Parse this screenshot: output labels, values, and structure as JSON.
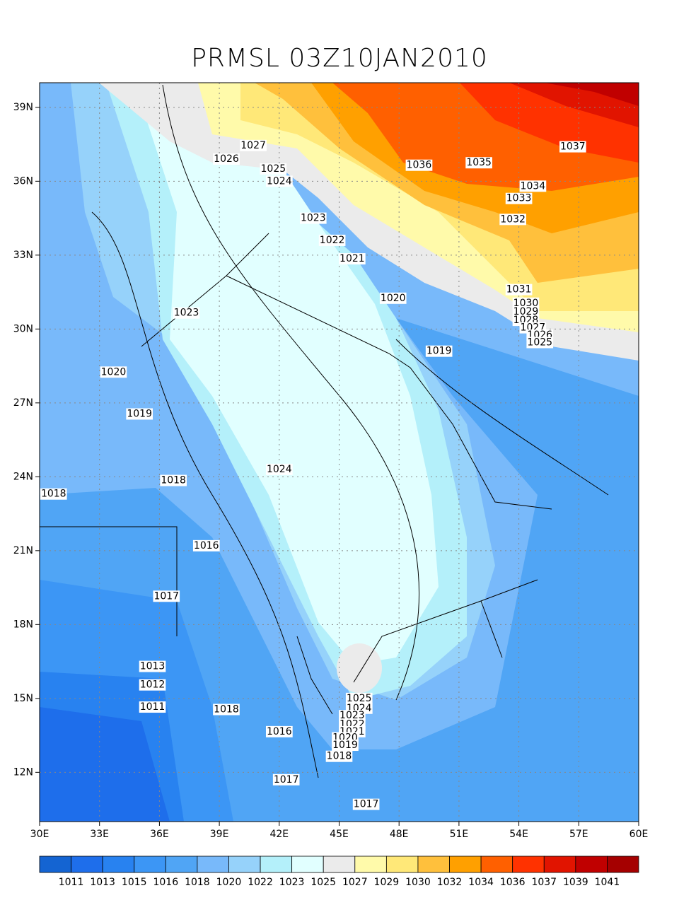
{
  "chart_data": {
    "type": "contour",
    "title": "PRMSL 03Z10JAN2010",
    "xlim": [
      30,
      60
    ],
    "ylim": [
      10,
      40
    ],
    "grid": true,
    "xticks": [
      {
        "value": 30,
        "label": "30E"
      },
      {
        "value": 33,
        "label": "33E"
      },
      {
        "value": 36,
        "label": "36E"
      },
      {
        "value": 39,
        "label": "39E"
      },
      {
        "value": 42,
        "label": "42E"
      },
      {
        "value": 45,
        "label": "45E"
      },
      {
        "value": 48,
        "label": "48E"
      },
      {
        "value": 51,
        "label": "51E"
      },
      {
        "value": 54,
        "label": "54E"
      },
      {
        "value": 57,
        "label": "57E"
      },
      {
        "value": 60,
        "label": "60E"
      }
    ],
    "yticks": [
      {
        "value": 12,
        "label": "12N"
      },
      {
        "value": 15,
        "label": "15N"
      },
      {
        "value": 18,
        "label": "18N"
      },
      {
        "value": 21,
        "label": "21N"
      },
      {
        "value": 24,
        "label": "24N"
      },
      {
        "value": 27,
        "label": "27N"
      },
      {
        "value": 30,
        "label": "30N"
      },
      {
        "value": 33,
        "label": "33N"
      },
      {
        "value": 36,
        "label": "36N"
      },
      {
        "value": 39,
        "label": "39N"
      }
    ],
    "contour_labels": [
      {
        "value": 1027,
        "lon": 40.7,
        "lat": 37.45
      },
      {
        "value": 1026,
        "lon": 39.35,
        "lat": 36.9
      },
      {
        "value": 1025,
        "lon": 41.7,
        "lat": 36.5
      },
      {
        "value": 1024,
        "lon": 42.0,
        "lat": 36.0
      },
      {
        "value": 1036,
        "lon": 49.0,
        "lat": 36.65
      },
      {
        "value": 1035,
        "lon": 52.0,
        "lat": 36.75
      },
      {
        "value": 1037,
        "lon": 56.7,
        "lat": 37.4
      },
      {
        "value": 1034,
        "lon": 54.7,
        "lat": 35.8
      },
      {
        "value": 1033,
        "lon": 54.0,
        "lat": 35.3
      },
      {
        "value": 1032,
        "lon": 53.7,
        "lat": 34.45
      },
      {
        "value": 1023,
        "lon": 43.7,
        "lat": 34.5
      },
      {
        "value": 1022,
        "lon": 44.65,
        "lat": 33.6
      },
      {
        "value": 1021,
        "lon": 45.65,
        "lat": 32.85
      },
      {
        "value": 1020,
        "lon": 47.7,
        "lat": 31.25
      },
      {
        "value": 1031,
        "lon": 54.0,
        "lat": 31.6
      },
      {
        "value": 1030,
        "lon": 54.35,
        "lat": 31.05
      },
      {
        "value": 1029,
        "lon": 54.35,
        "lat": 30.7
      },
      {
        "value": 1028,
        "lon": 54.35,
        "lat": 30.35
      },
      {
        "value": 1027,
        "lon": 54.7,
        "lat": 30.05
      },
      {
        "value": 1026,
        "lon": 55.05,
        "lat": 29.75
      },
      {
        "value": 1025,
        "lon": 55.05,
        "lat": 29.45
      },
      {
        "value": 1023,
        "lon": 37.35,
        "lat": 30.65
      },
      {
        "value": 1019,
        "lon": 50.0,
        "lat": 29.1
      },
      {
        "value": 1020,
        "lon": 33.7,
        "lat": 28.25
      },
      {
        "value": 1019,
        "lon": 35.0,
        "lat": 26.55
      },
      {
        "value": 1024,
        "lon": 42.0,
        "lat": 24.3
      },
      {
        "value": 1018,
        "lon": 36.7,
        "lat": 23.85
      },
      {
        "value": 1018,
        "lon": 30.7,
        "lat": 23.3
      },
      {
        "value": 1016,
        "lon": 38.35,
        "lat": 21.2
      },
      {
        "value": 1017,
        "lon": 36.35,
        "lat": 19.15
      },
      {
        "value": 1013,
        "lon": 35.65,
        "lat": 16.3
      },
      {
        "value": 1012,
        "lon": 35.65,
        "lat": 15.55
      },
      {
        "value": 1011,
        "lon": 35.65,
        "lat": 14.65
      },
      {
        "value": 1018,
        "lon": 39.35,
        "lat": 14.55
      },
      {
        "value": 1025,
        "lon": 46.0,
        "lat": 15.0
      },
      {
        "value": 1024,
        "lon": 46.0,
        "lat": 14.6
      },
      {
        "value": 1023,
        "lon": 45.65,
        "lat": 14.3
      },
      {
        "value": 1022,
        "lon": 45.65,
        "lat": 13.95
      },
      {
        "value": 1021,
        "lon": 45.65,
        "lat": 13.65
      },
      {
        "value": 1020,
        "lon": 45.3,
        "lat": 13.4
      },
      {
        "value": 1019,
        "lon": 45.3,
        "lat": 13.1
      },
      {
        "value": 1018,
        "lon": 45.0,
        "lat": 12.65
      },
      {
        "value": 1016,
        "lon": 42.0,
        "lat": 13.65
      },
      {
        "value": 1017,
        "lon": 42.35,
        "lat": 11.7
      },
      {
        "value": 1017,
        "lon": 46.35,
        "lat": 10.7
      }
    ],
    "colorbar": {
      "levels": [
        1011,
        1013,
        1015,
        1016,
        1018,
        1020,
        1022,
        1023,
        1025,
        1027,
        1029,
        1030,
        1032,
        1034,
        1036,
        1037,
        1039,
        1041
      ],
      "colors": [
        "#1464d2",
        "#1e6eeb",
        "#2882f0",
        "#3c96f5",
        "#50a5f5",
        "#78b9fa",
        "#96d2fa",
        "#b4f0fa",
        "#e1ffff",
        "#ebebeb",
        "#fffaaa",
        "#ffe878",
        "#ffc03c",
        "#ffa000",
        "#ff6000",
        "#ff3200",
        "#e11400",
        "#c00000",
        "#a50000"
      ]
    }
  }
}
